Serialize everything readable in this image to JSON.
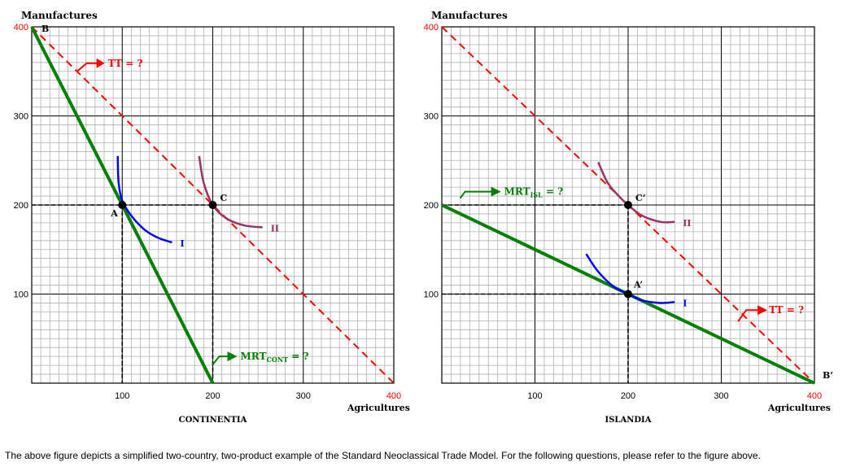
{
  "caption": "The above figure depicts a simplified two-country, two-product example of the Standard Neoclassical Trade Model.  For the following questions, please refer to the figure above.",
  "colors": {
    "grid_minor": "#b0b0b0",
    "grid_major": "#000000",
    "tt_line": "#ff0000",
    "mrt_line": "#008000",
    "indiff_I": "#0000ff",
    "indiff_II": "#993366",
    "tt_label": "#ff0000",
    "mrt_label": "#008000"
  },
  "chart_data": [
    {
      "type": "line",
      "title": "CONTINENTIA",
      "xlabel": "Agricultures",
      "ylabel": "Manufactures",
      "xlim": [
        0,
        400
      ],
      "ylim": [
        0,
        400
      ],
      "x_ticks": [
        100,
        200,
        300,
        400
      ],
      "y_ticks": [
        100,
        200,
        300,
        400
      ],
      "grid": true,
      "series": [
        {
          "key": "tt",
          "points": [
            [
              0,
              400
            ],
            [
              400,
              0
            ]
          ]
        },
        {
          "key": "mrt",
          "points": [
            [
              0,
              400
            ],
            [
              200,
              0
            ]
          ]
        },
        {
          "key": "curve_I",
          "points": [
            [
              95,
              255
            ],
            [
              96,
              225
            ],
            [
              100,
              205
            ],
            [
              110,
              188
            ],
            [
              125,
              172
            ],
            [
              140,
              163
            ],
            [
              155,
              158
            ]
          ]
        },
        {
          "key": "curve_II",
          "points": [
            [
              185,
              255
            ],
            [
              190,
              225
            ],
            [
              200,
              200
            ],
            [
              215,
              185
            ],
            [
              235,
              177
            ],
            [
              255,
              175
            ]
          ]
        }
      ],
      "points": [
        {
          "label": "A",
          "x": 100,
          "y": 200
        },
        {
          "label": "C",
          "x": 200,
          "y": 200
        },
        {
          "label": "B",
          "x": 0,
          "y": 400
        }
      ],
      "dashed_guides": [
        {
          "from": [
            0,
            200
          ],
          "to": [
            200,
            200
          ]
        },
        {
          "from": [
            100,
            200
          ],
          "to": [
            100,
            0
          ]
        },
        {
          "from": [
            200,
            200
          ],
          "to": [
            200,
            0
          ]
        }
      ],
      "curve_labels": {
        "I": "I",
        "II": "II"
      },
      "annotations": {
        "tt": "TT = ?",
        "mrt_main": "MRT",
        "mrt_sub": "CONT",
        "mrt_tail": " = ?"
      }
    },
    {
      "type": "line",
      "title": "ISLANDIA",
      "xlabel": "Agricultures",
      "ylabel": "Manufactures",
      "xlim": [
        0,
        400
      ],
      "ylim": [
        0,
        400
      ],
      "x_ticks": [
        100,
        200,
        300,
        400
      ],
      "y_ticks": [
        100,
        200,
        300,
        400
      ],
      "grid": true,
      "series": [
        {
          "key": "tt",
          "points": [
            [
              0,
              400
            ],
            [
              400,
              0
            ]
          ]
        },
        {
          "key": "mrt",
          "points": [
            [
              0,
              200
            ],
            [
              400,
              0
            ]
          ]
        },
        {
          "key": "curve_I",
          "points": [
            [
              155,
              145
            ],
            [
              168,
              125
            ],
            [
              185,
              108
            ],
            [
              200,
              100
            ],
            [
              215,
              93
            ],
            [
              235,
              90
            ],
            [
              250,
              91
            ]
          ]
        },
        {
          "key": "curve_II",
          "points": [
            [
              168,
              248
            ],
            [
              178,
              225
            ],
            [
              190,
              210
            ],
            [
              200,
              200
            ],
            [
              215,
              188
            ],
            [
              235,
              181
            ],
            [
              250,
              181
            ]
          ]
        }
      ],
      "points": [
        {
          "label": "A’",
          "x": 200,
          "y": 100
        },
        {
          "label": "C’",
          "x": 200,
          "y": 200
        },
        {
          "label": "B’",
          "x": 400,
          "y": 0
        }
      ],
      "dashed_guides": [
        {
          "from": [
            0,
            100
          ],
          "to": [
            200,
            100
          ]
        },
        {
          "from": [
            0,
            200
          ],
          "to": [
            200,
            200
          ]
        },
        {
          "from": [
            200,
            200
          ],
          "to": [
            200,
            0
          ]
        }
      ],
      "curve_labels": {
        "I": "I",
        "II": "II"
      },
      "annotations": {
        "tt": "TT = ?",
        "mrt_main": "MRT",
        "mrt_sub": "ISL",
        "mrt_tail": " = ?"
      }
    }
  ]
}
